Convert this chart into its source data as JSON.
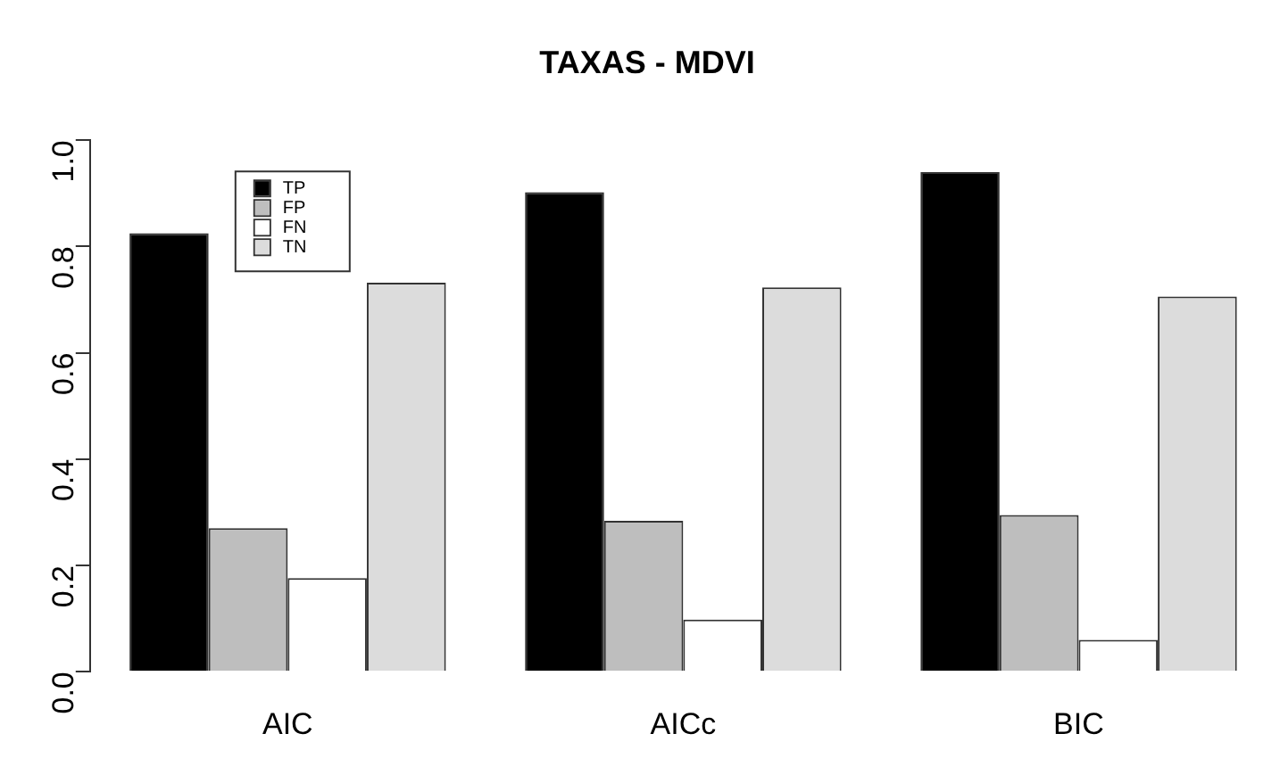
{
  "chart_data": {
    "type": "bar",
    "title": "TAXAS - MDVI",
    "categories": [
      "AIC",
      "AICc",
      "BIC"
    ],
    "series": [
      {
        "name": "TP",
        "color": "#000000",
        "values": [
          0.825,
          0.902,
          0.94
        ]
      },
      {
        "name": "FP",
        "color": "#bebebe",
        "values": [
          0.27,
          0.284,
          0.295
        ]
      },
      {
        "name": "FN",
        "color": "#ffffff",
        "values": [
          0.176,
          0.098,
          0.06
        ]
      },
      {
        "name": "TN",
        "color": "#dcdcdc",
        "values": [
          0.732,
          0.723,
          0.706
        ]
      }
    ],
    "ylim": [
      0,
      1
    ],
    "yticks": [
      {
        "value": 0,
        "label": "0.0"
      },
      {
        "value": 0.2,
        "label": "0.2"
      },
      {
        "value": 0.4,
        "label": "0.4"
      },
      {
        "value": 0.6,
        "label": "0.6"
      },
      {
        "value": 0.8,
        "label": "0.8"
      },
      {
        "value": 1,
        "label": "1.0"
      }
    ],
    "grid": false,
    "legend": "top left"
  }
}
